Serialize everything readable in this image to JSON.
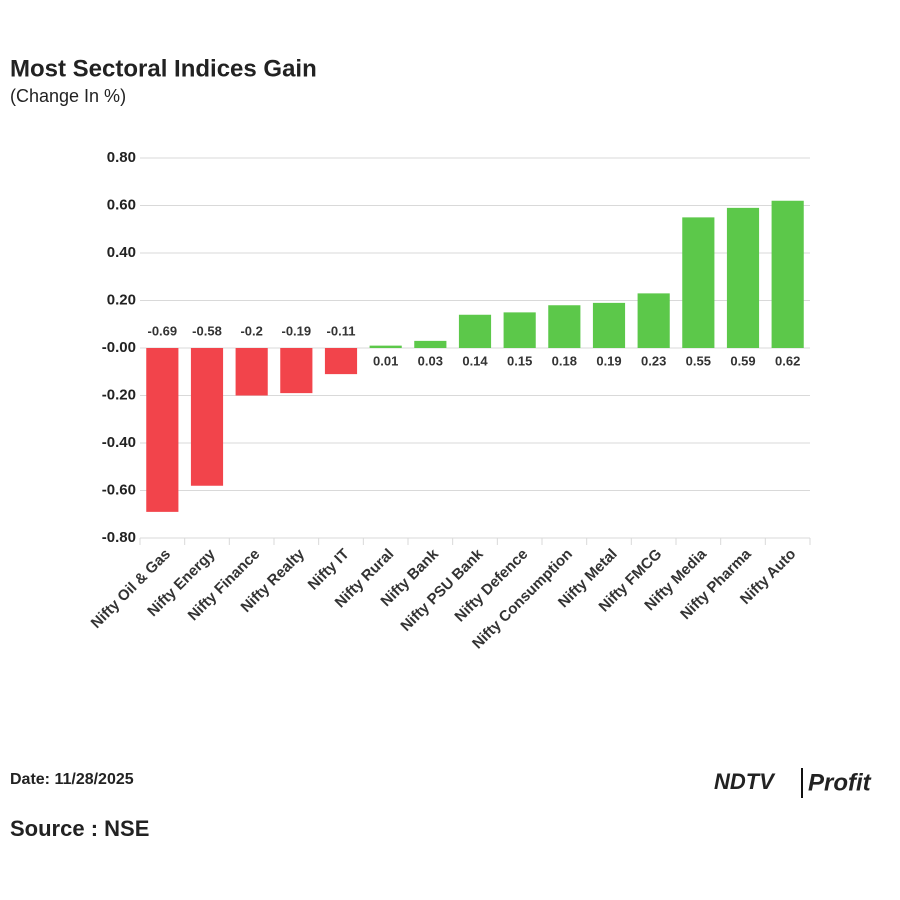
{
  "chart_data": {
    "type": "bar",
    "title": "Most Sectoral Indices Gain",
    "subtitle": "(Change In %)",
    "categories": [
      "Nifty Oil & Gas",
      "Nifty Energy",
      "Nifty Finance",
      "Nifty Realty",
      "Nifty IT",
      "Nifty Rural",
      "Nifty Bank",
      "Nifty PSU Bank",
      "Nifty Defence",
      "Nifty Consumption",
      "Nifty Metal",
      "Nifty FMCG",
      "Nifty Media",
      "Nifty Pharma",
      "Nifty Auto"
    ],
    "values": [
      -0.69,
      -0.58,
      -0.2,
      -0.19,
      -0.11,
      0.01,
      0.03,
      0.14,
      0.15,
      0.18,
      0.19,
      0.23,
      0.55,
      0.59,
      0.62
    ],
    "positive_color": "#5cc84a",
    "negative_color": "#f2444b",
    "ylim": [
      -0.8,
      0.8
    ],
    "yticks": [
      {
        "value": 0.8,
        "label": "0.80"
      },
      {
        "value": 0.6,
        "label": "0.60"
      },
      {
        "value": 0.4,
        "label": "0.40"
      },
      {
        "value": 0.2,
        "label": "0.20"
      },
      {
        "value": 0,
        "label": "-0.00"
      },
      {
        "value": -0.2,
        "label": "-0.20"
      },
      {
        "value": -0.4,
        "label": "-0.40"
      },
      {
        "value": -0.6,
        "label": "-0.60"
      },
      {
        "value": -0.8,
        "label": "-0.80"
      }
    ],
    "grid": true,
    "date": "Date: 11/28/2025",
    "source": "Source : NSE",
    "logo": {
      "brand": "NDTV",
      "product": "Profit"
    }
  }
}
